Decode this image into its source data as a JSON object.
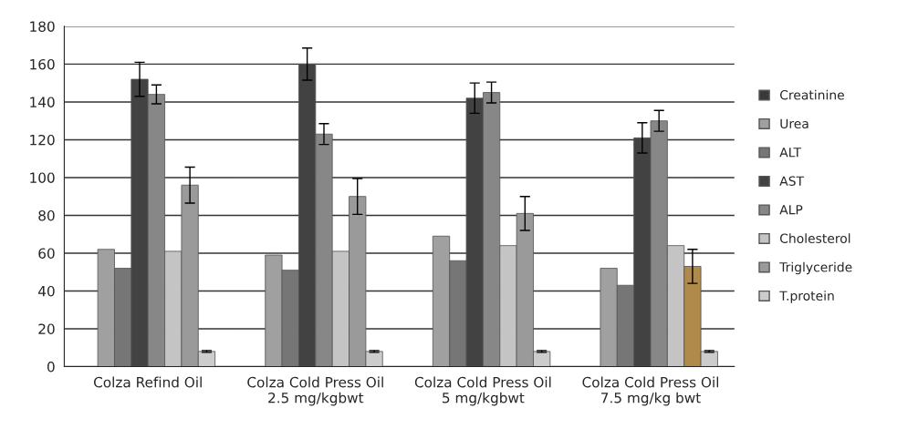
{
  "chart_data": {
    "type": "bar",
    "categories": [
      "Colza Refind Oil",
      "Colza Cold Press Oil\n2.5 mg/kgbwt",
      "Colza Cold Press Oil\n5 mg/kgbwt",
      "Colza Cold Press Oil\n7.5 mg/kg bwt"
    ],
    "series": [
      {
        "name": "Creatinine",
        "color": "#3a3a3a",
        "values": [
          null,
          null,
          null,
          null
        ]
      },
      {
        "name": "Urea",
        "color": "#a0a0a0",
        "values": [
          62,
          59,
          69,
          52
        ]
      },
      {
        "name": "ALT",
        "color": "#767676",
        "values": [
          52,
          51,
          56,
          43
        ]
      },
      {
        "name": "AST",
        "color": "#424242",
        "values": [
          152,
          160,
          142,
          121
        ],
        "errors": [
          9,
          8.5,
          8,
          8
        ]
      },
      {
        "name": "ALP",
        "color": "#878787",
        "values": [
          144,
          123,
          145,
          130
        ],
        "errors": [
          5,
          5.5,
          5.5,
          5.5
        ]
      },
      {
        "name": "Cholesterol",
        "color": "#c4c4c4",
        "values": [
          61,
          61,
          64,
          64
        ]
      },
      {
        "name": "Triglyceride",
        "color": "#9a9a9a",
        "colors": [
          "#9a9a9a",
          "#9a9a9a",
          "#9a9a9a",
          "#b08a4a"
        ],
        "values": [
          96,
          90,
          81,
          53
        ],
        "errors": [
          9.5,
          9.5,
          9,
          9
        ]
      },
      {
        "name": "T.protein",
        "color": "#cccccc",
        "values": [
          8,
          8,
          8,
          8
        ],
        "errors": [
          0.5,
          0.5,
          0.5,
          0.5
        ]
      }
    ],
    "ylim": [
      0,
      180
    ],
    "yticks": [
      0,
      20,
      40,
      60,
      80,
      100,
      120,
      140,
      160,
      180
    ],
    "grid": "y",
    "legend": "right"
  }
}
